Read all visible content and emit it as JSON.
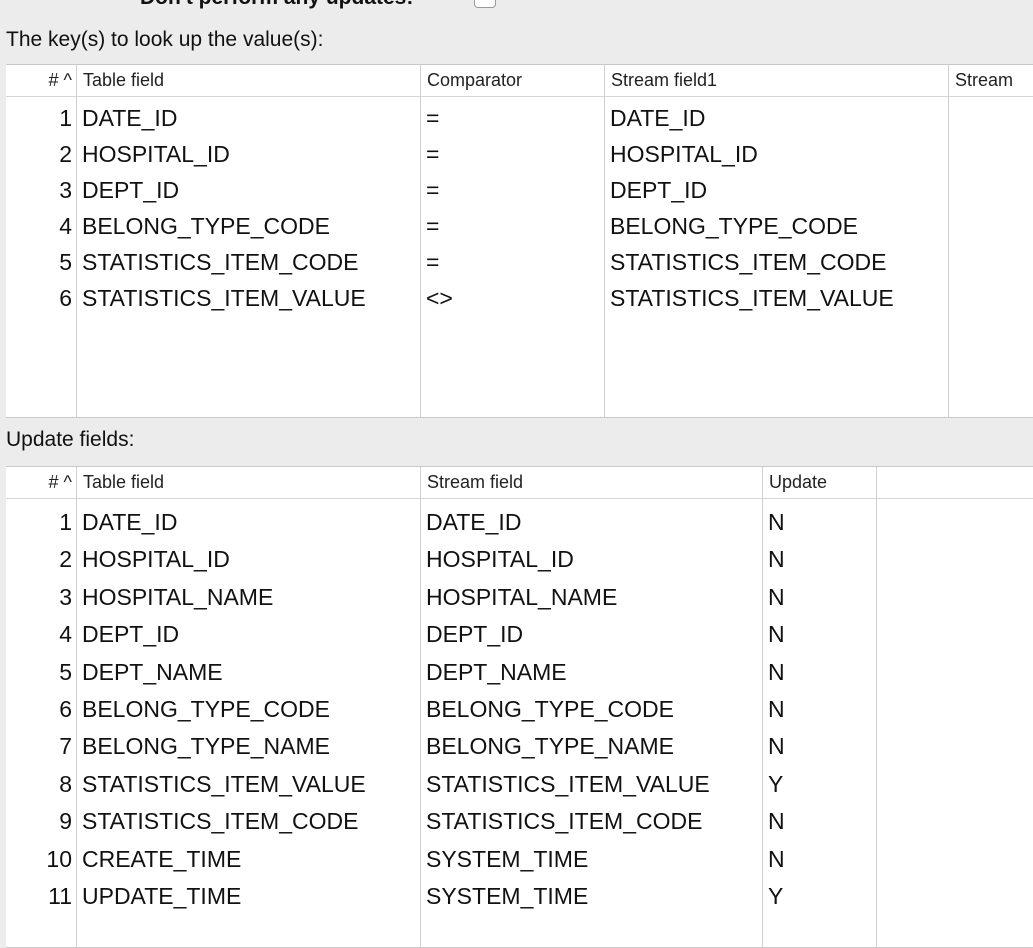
{
  "top": {
    "label": "Don't perform any updates:",
    "checkbox_checked": false
  },
  "keys": {
    "label": "The key(s) to look up the value(s):",
    "columns": [
      "#",
      "Table field",
      "Comparator",
      "Stream field1",
      "Stream"
    ],
    "sort_indicator": "^",
    "rows": [
      [
        "1",
        "DATE_ID",
        "=",
        "DATE_ID"
      ],
      [
        "2",
        "HOSPITAL_ID",
        "=",
        "HOSPITAL_ID"
      ],
      [
        "3",
        "DEPT_ID",
        "=",
        "DEPT_ID"
      ],
      [
        "4",
        "BELONG_TYPE_CODE",
        "=",
        "BELONG_TYPE_CODE"
      ],
      [
        "5",
        "STATISTICS_ITEM_CODE",
        "=",
        "STATISTICS_ITEM_CODE"
      ],
      [
        "6",
        "STATISTICS_ITEM_VALUE",
        "<>",
        "STATISTICS_ITEM_VALUE"
      ]
    ]
  },
  "updates": {
    "label": "Update fields:",
    "columns": [
      "#",
      "Table field",
      "Stream field",
      "Update"
    ],
    "sort_indicator": "^",
    "rows": [
      [
        "1",
        "DATE_ID",
        "DATE_ID",
        "N"
      ],
      [
        "2",
        "HOSPITAL_ID",
        "HOSPITAL_ID",
        "N"
      ],
      [
        "3",
        "HOSPITAL_NAME",
        "HOSPITAL_NAME",
        "N"
      ],
      [
        "4",
        "DEPT_ID",
        "DEPT_ID",
        "N"
      ],
      [
        "5",
        "DEPT_NAME",
        "DEPT_NAME",
        "N"
      ],
      [
        "6",
        "BELONG_TYPE_CODE",
        "BELONG_TYPE_CODE",
        "N"
      ],
      [
        "7",
        "BELONG_TYPE_NAME",
        "BELONG_TYPE_NAME",
        "N"
      ],
      [
        "8",
        "STATISTICS_ITEM_VALUE",
        "STATISTICS_ITEM_VALUE",
        "Y"
      ],
      [
        "9",
        "STATISTICS_ITEM_CODE",
        "STATISTICS_ITEM_CODE",
        "N"
      ],
      [
        "10",
        "CREATE_TIME",
        "SYSTEM_TIME",
        "N"
      ],
      [
        "11",
        "UPDATE_TIME",
        "SYSTEM_TIME",
        "Y"
      ]
    ]
  }
}
